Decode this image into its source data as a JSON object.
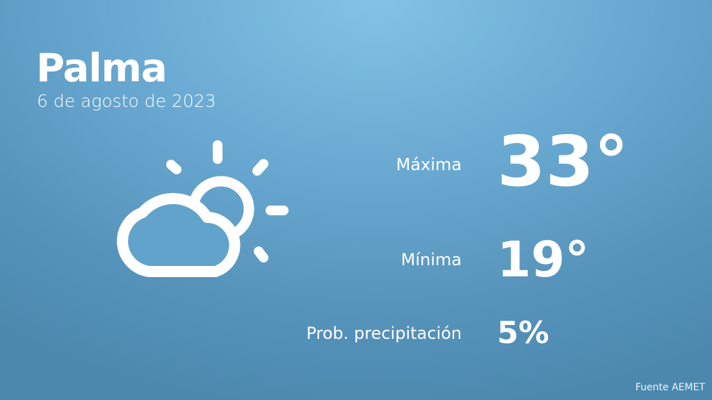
{
  "header": {
    "city": "Palma",
    "date": "6 de agosto de 2023"
  },
  "icon": "partly-cloudy-icon",
  "stats": {
    "max": {
      "label": "Máxima",
      "value": "33°"
    },
    "min": {
      "label": "Mínima",
      "value": "19°"
    },
    "precip": {
      "label": "Prob. precipitación",
      "value": "5%"
    }
  },
  "footer": {
    "source": "Fuente AEMET"
  }
}
